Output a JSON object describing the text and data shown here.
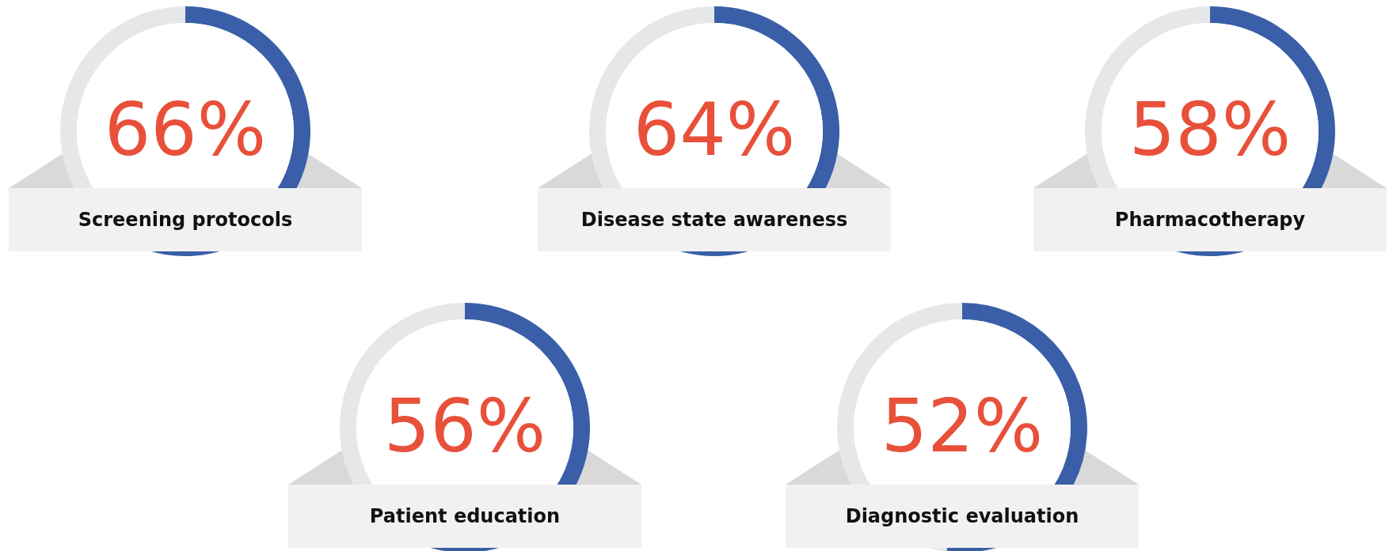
{
  "chart_data": [
    {
      "type": "donut",
      "title": "Screening protocols",
      "categories": [
        null,
        null
      ],
      "values": [
        66,
        34
      ],
      "colors": [
        "#3a5fa8",
        "#e6e7e9"
      ],
      "value_labels": [
        "66%",
        null
      ]
    },
    {
      "type": "donut",
      "title": "Disease state awareness",
      "categories": [
        null,
        null
      ],
      "values": [
        64,
        36
      ],
      "colors": [
        "#3a5fa8",
        "#e6e7e9"
      ],
      "value_labels": [
        "64%",
        null
      ]
    },
    {
      "type": "donut",
      "title": "Pharmacotherapy",
      "categories": [
        null,
        null
      ],
      "values": [
        58,
        42
      ],
      "colors": [
        "#3a5fa8",
        "#e6e7e9"
      ],
      "value_labels": [
        "58%",
        null
      ]
    },
    {
      "type": "donut",
      "title": "Patient education",
      "categories": [
        null,
        null
      ],
      "values": [
        56,
        44
      ],
      "colors": [
        "#3a5fa8",
        "#e6e7e9"
      ],
      "value_labels": [
        "56%",
        null
      ]
    },
    {
      "type": "donut",
      "title": "Diagnostic evaluation",
      "categories": [
        null,
        null
      ],
      "values": [
        52,
        48
      ],
      "colors": [
        "#3a5fa8",
        "#e6e7e9"
      ],
      "value_labels": [
        "52%",
        null
      ]
    }
  ]
}
